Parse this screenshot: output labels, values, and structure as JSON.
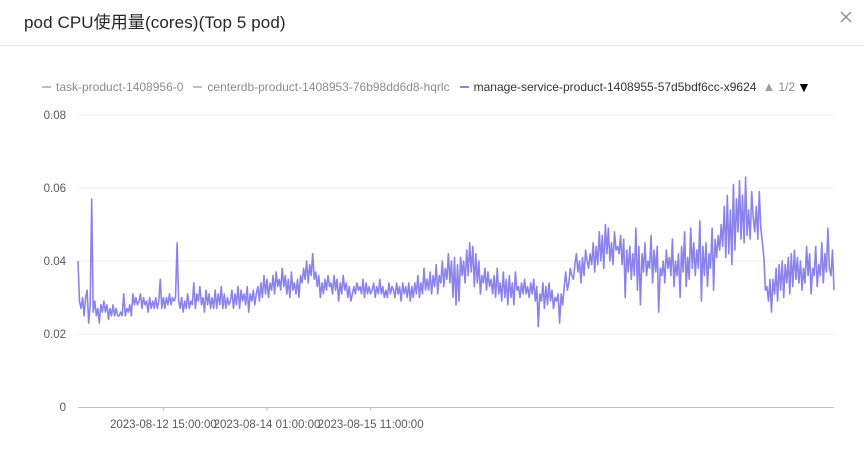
{
  "title": "pod CPU使用量(cores)(Top 5 pod)",
  "close_icon": "close-icon",
  "legend": {
    "items": [
      {
        "label": "task-product-1408956-0",
        "color": "#bfbfbf",
        "active": false
      },
      {
        "label": "centerdb-product-1408953-76b98dd6d8-hqrlc",
        "color": "#bfbfbf",
        "active": false
      },
      {
        "label": "manage-service-product-1408955-57d5bdf6cc-x9624",
        "color": "#8b83ea",
        "active": true
      }
    ],
    "page": "1/2",
    "prev_icon": "triangle-up-icon",
    "next_icon": "triangle-down-icon"
  },
  "chart_data": {
    "type": "line",
    "title": "pod CPU使用量(cores)(Top 5 pod)",
    "xlabel": "",
    "ylabel": "",
    "ylim": [
      0,
      0.08
    ],
    "yticks": [
      "0",
      "0.02",
      "0.04",
      "0.06",
      "0.08"
    ],
    "xticks": [
      "2023-08-12 15:00:00",
      "2023-08-14 01:00:00",
      "2023-08-15 11:00:00"
    ],
    "grid": "horizontal",
    "legend_position": "top",
    "x_start": "2023-08-11 11:00:00",
    "x_step_hours": 0.5,
    "series": [
      {
        "name": "manage-service-product-1408955-57d5bdf6cc-x9624",
        "color": "#8b83ea",
        "values": [
          0.04,
          0.029,
          0.027,
          0.03,
          0.025,
          0.03,
          0.032,
          0.023,
          0.028,
          0.057,
          0.026,
          0.029,
          0.025,
          0.027,
          0.023,
          0.028,
          0.026,
          0.029,
          0.026,
          0.028,
          0.024,
          0.027,
          0.025,
          0.028,
          0.025,
          0.027,
          0.025,
          0.025,
          0.026,
          0.025,
          0.031,
          0.025,
          0.027,
          0.026,
          0.028,
          0.025,
          0.031,
          0.028,
          0.03,
          0.028,
          0.029,
          0.031,
          0.027,
          0.03,
          0.028,
          0.029,
          0.026,
          0.03,
          0.027,
          0.029,
          0.027,
          0.03,
          0.027,
          0.029,
          0.035,
          0.027,
          0.03,
          0.027,
          0.03,
          0.028,
          0.031,
          0.028,
          0.03,
          0.029,
          0.03,
          0.045,
          0.029,
          0.027,
          0.03,
          0.026,
          0.029,
          0.027,
          0.031,
          0.027,
          0.029,
          0.028,
          0.034,
          0.027,
          0.031,
          0.029,
          0.033,
          0.028,
          0.03,
          0.026,
          0.032,
          0.028,
          0.031,
          0.027,
          0.03,
          0.027,
          0.032,
          0.027,
          0.031,
          0.028,
          0.033,
          0.027,
          0.031,
          0.027,
          0.03,
          0.028,
          0.029,
          0.032,
          0.027,
          0.031,
          0.028,
          0.033,
          0.027,
          0.032,
          0.029,
          0.031,
          0.028,
          0.033,
          0.026,
          0.031,
          0.029,
          0.032,
          0.028,
          0.031,
          0.033,
          0.029,
          0.034,
          0.03,
          0.036,
          0.031,
          0.035,
          0.03,
          0.034,
          0.032,
          0.036,
          0.031,
          0.037,
          0.033,
          0.035,
          0.032,
          0.038,
          0.033,
          0.036,
          0.031,
          0.035,
          0.03,
          0.037,
          0.032,
          0.034,
          0.031,
          0.035,
          0.03,
          0.036,
          0.034,
          0.038,
          0.035,
          0.04,
          0.034,
          0.039,
          0.036,
          0.042,
          0.035,
          0.037,
          0.033,
          0.036,
          0.03,
          0.034,
          0.031,
          0.035,
          0.032,
          0.036,
          0.033,
          0.034,
          0.031,
          0.036,
          0.032,
          0.035,
          0.029,
          0.034,
          0.031,
          0.036,
          0.032,
          0.034,
          0.03,
          0.033,
          0.029,
          0.031,
          0.033,
          0.031,
          0.034,
          0.032,
          0.033,
          0.031,
          0.035,
          0.03,
          0.034,
          0.031,
          0.033,
          0.031,
          0.032,
          0.034,
          0.03,
          0.033,
          0.031,
          0.035,
          0.031,
          0.033,
          0.03,
          0.032,
          0.03,
          0.034,
          0.031,
          0.033,
          0.032,
          0.03,
          0.034,
          0.031,
          0.033,
          0.029,
          0.034,
          0.031,
          0.033,
          0.03,
          0.034,
          0.029,
          0.033,
          0.03,
          0.034,
          0.031,
          0.036,
          0.03,
          0.034,
          0.031,
          0.038,
          0.032,
          0.035,
          0.032,
          0.037,
          0.031,
          0.036,
          0.033,
          0.039,
          0.031,
          0.036,
          0.034,
          0.04,
          0.033,
          0.038,
          0.035,
          0.042,
          0.034,
          0.04,
          0.03,
          0.041,
          0.028,
          0.039,
          0.029,
          0.041,
          0.036,
          0.04,
          0.034,
          0.043,
          0.036,
          0.045,
          0.037,
          0.044,
          0.033,
          0.042,
          0.034,
          0.04,
          0.031,
          0.036,
          0.034,
          0.038,
          0.032,
          0.037,
          0.033,
          0.035,
          0.031,
          0.036,
          0.03,
          0.038,
          0.031,
          0.034,
          0.029,
          0.037,
          0.03,
          0.035,
          0.028,
          0.036,
          0.03,
          0.034,
          0.028,
          0.037,
          0.032,
          0.033,
          0.03,
          0.034,
          0.031,
          0.035,
          0.031,
          0.033,
          0.03,
          0.034,
          0.031,
          0.035,
          0.029,
          0.033,
          0.022,
          0.031,
          0.029,
          0.034,
          0.027,
          0.033,
          0.028,
          0.034,
          0.029,
          0.032,
          0.027,
          0.03,
          0.029,
          0.031,
          0.023,
          0.031,
          0.028,
          0.033,
          0.037,
          0.032,
          0.034,
          0.038,
          0.036,
          0.035,
          0.039,
          0.042,
          0.037,
          0.04,
          0.034,
          0.041,
          0.036,
          0.043,
          0.04,
          0.038,
          0.042,
          0.039,
          0.045,
          0.037,
          0.044,
          0.039,
          0.048,
          0.04,
          0.047,
          0.038,
          0.05,
          0.042,
          0.049,
          0.04,
          0.045,
          0.039,
          0.048,
          0.043,
          0.044,
          0.042,
          0.047,
          0.039,
          0.046,
          0.03,
          0.043,
          0.037,
          0.044,
          0.035,
          0.042,
          0.036,
          0.049,
          0.032,
          0.044,
          0.028,
          0.042,
          0.037,
          0.045,
          0.036,
          0.04,
          0.038,
          0.047,
          0.034,
          0.043,
          0.037,
          0.044,
          0.026,
          0.038,
          0.036,
          0.04,
          0.034,
          0.043,
          0.038,
          0.041,
          0.036,
          0.046,
          0.033,
          0.04,
          0.036,
          0.042,
          0.03,
          0.044,
          0.037,
          0.048,
          0.033,
          0.041,
          0.035,
          0.049,
          0.038,
          0.045,
          0.036,
          0.043,
          0.038,
          0.051,
          0.029,
          0.044,
          0.036,
          0.045,
          0.033,
          0.042,
          0.038,
          0.049,
          0.032,
          0.046,
          0.041,
          0.047,
          0.043,
          0.05,
          0.044,
          0.055,
          0.041,
          0.058,
          0.042,
          0.054,
          0.039,
          0.061,
          0.043,
          0.057,
          0.048,
          0.062,
          0.046,
          0.058,
          0.045,
          0.063,
          0.047,
          0.054,
          0.046,
          0.059,
          0.052,
          0.048,
          0.055,
          0.046,
          0.059,
          0.049,
          0.045,
          0.041,
          0.032,
          0.033,
          0.029,
          0.035,
          0.026,
          0.035,
          0.031,
          0.038,
          0.029,
          0.039,
          0.032,
          0.04,
          0.03,
          0.039,
          0.034,
          0.041,
          0.031,
          0.042,
          0.033,
          0.043,
          0.035,
          0.041,
          0.034,
          0.04,
          0.032,
          0.038,
          0.034,
          0.044,
          0.036,
          0.042,
          0.031,
          0.038,
          0.036,
          0.044,
          0.033,
          0.039,
          0.036,
          0.045,
          0.034,
          0.042,
          0.037,
          0.049,
          0.038,
          0.036,
          0.043,
          0.032
        ]
      },
      {
        "name": "task-product-1408956-0",
        "color": "#bfbfbf",
        "values": []
      },
      {
        "name": "centerdb-product-1408953-76b98dd6d8-hqrlc",
        "color": "#bfbfbf",
        "values": []
      }
    ]
  }
}
